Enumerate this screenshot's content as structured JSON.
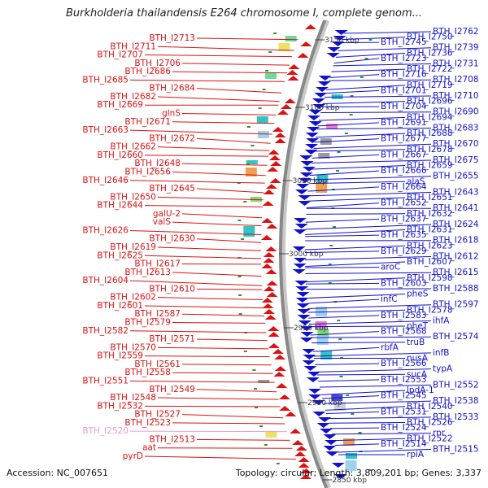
{
  "title": "Burkholderia thailandensis E264 chromosome I, complete genom...",
  "footer": {
    "accession": "Accession: NC_007651",
    "summary": "Topology: circular; Length: 3,809,201 bp; Genes: 3,337"
  },
  "colors": {
    "left_strand": "#dd1111",
    "right_strand": "#1111cc",
    "highlight": "#e8a0c8",
    "backbone": "#888888"
  },
  "kbp_ticks": [
    "3150 kbp",
    "3100 kbp",
    "3050 kbp",
    "3000 kbp",
    "2950 kbp",
    "2900 kbp",
    "2850 kbp"
  ],
  "left_labels": [
    "BTH_I2713",
    "BTH_I2711",
    "BTH_I2707",
    "BTH_I2706",
    "BTH_I2686",
    "BTH_I2685",
    "BTH_I2684",
    "BTH_I2682",
    "BTH_I2669",
    "glnS",
    "BTH_I2671",
    "BTH_I2663",
    "BTH_I2672",
    "BTH_I2662",
    "BTH_I2660",
    "BTH_I2648",
    "BTH_I2656",
    "BTH_I2646",
    "BTH_I2645",
    "BTH_I2650",
    "BTH_I2644",
    "galU-2",
    "valS",
    "BTH_I2626",
    "BTH_I2630",
    "BTH_I2619",
    "BTH_I2625",
    "BTH_I2617",
    "BTH_I2613",
    "BTH_I2604",
    "BTH_I2610",
    "BTH_I2602",
    "BTH_I2601",
    "BTH_I2587",
    "BTH_I2579",
    "BTH_I2582",
    "BTH_I2571",
    "BTH_I2570",
    "BTH_I2559",
    "BTH_I2561",
    "BTH_I2558",
    "BTH_I2551",
    "BTH_I2549",
    "BTH_I2548",
    "BTH_I2532",
    "BTH_I2527",
    "BTH_I2523",
    "BTH_I2520",
    "BTH_I2513",
    "aat",
    "pyrD"
  ],
  "right_labels": [
    "BTH_I2762",
    "BTH_I2750",
    "BTH_I2745",
    "BTH_I2739",
    "BTH_I2736",
    "BTH_I2723",
    "BTH_I2731",
    "BTH_I2722",
    "BTH_I2716",
    "BTH_I2708",
    "BTH_I2719",
    "BTH_I2701",
    "BTH_I2710",
    "BTH_I2696",
    "BTH_I2704",
    "BTH_I2690",
    "BTH_I2694",
    "BTH_I2691",
    "BTH_I2683",
    "BTH_I2688",
    "BTH_I2677",
    "BTH_I2670",
    "BTH_I2678",
    "BTH_I2667",
    "BTH_I2675",
    "BTH_I2659",
    "BTH_I2666",
    "BTH_I2655",
    "alaS",
    "BTH_I2664",
    "BTH_I2643",
    "BTH_I2651",
    "BTH_I2652",
    "BTH_I2641",
    "BTH_I2632",
    "BTH_I2637",
    "BTH_I2624",
    "BTH_I2631",
    "BTH_I2635",
    "BTH_I2618",
    "BTH_I2623",
    "BTH_I2629",
    "BTH_I2612",
    "BTH_I2607",
    "aroC",
    "BTH_I2615",
    "BTH_I2598",
    "BTH_I2603",
    "BTH_I2588",
    "pheS",
    "infC",
    "BTH_I2597",
    "BTH_I2578",
    "BTH_I2583",
    "ihfA",
    "pheT",
    "BTH_I2568",
    "BTH_I2574",
    "truB",
    "rbfA",
    "infB",
    "nusA",
    "BTH_I2566",
    "typA",
    "sucA",
    "BTH_I2553",
    "BTH_I2552",
    "lpdA-1",
    "BTH_I2545",
    "BTH_I2538",
    "BTH_I2540",
    "BTH_I2531",
    "BTH_I2533",
    "BTH_I2526",
    "BTH_I2524",
    "rnr",
    "BTH_I2522",
    "BTH_I2514",
    "BTH_I2515",
    "rpiA"
  ]
}
